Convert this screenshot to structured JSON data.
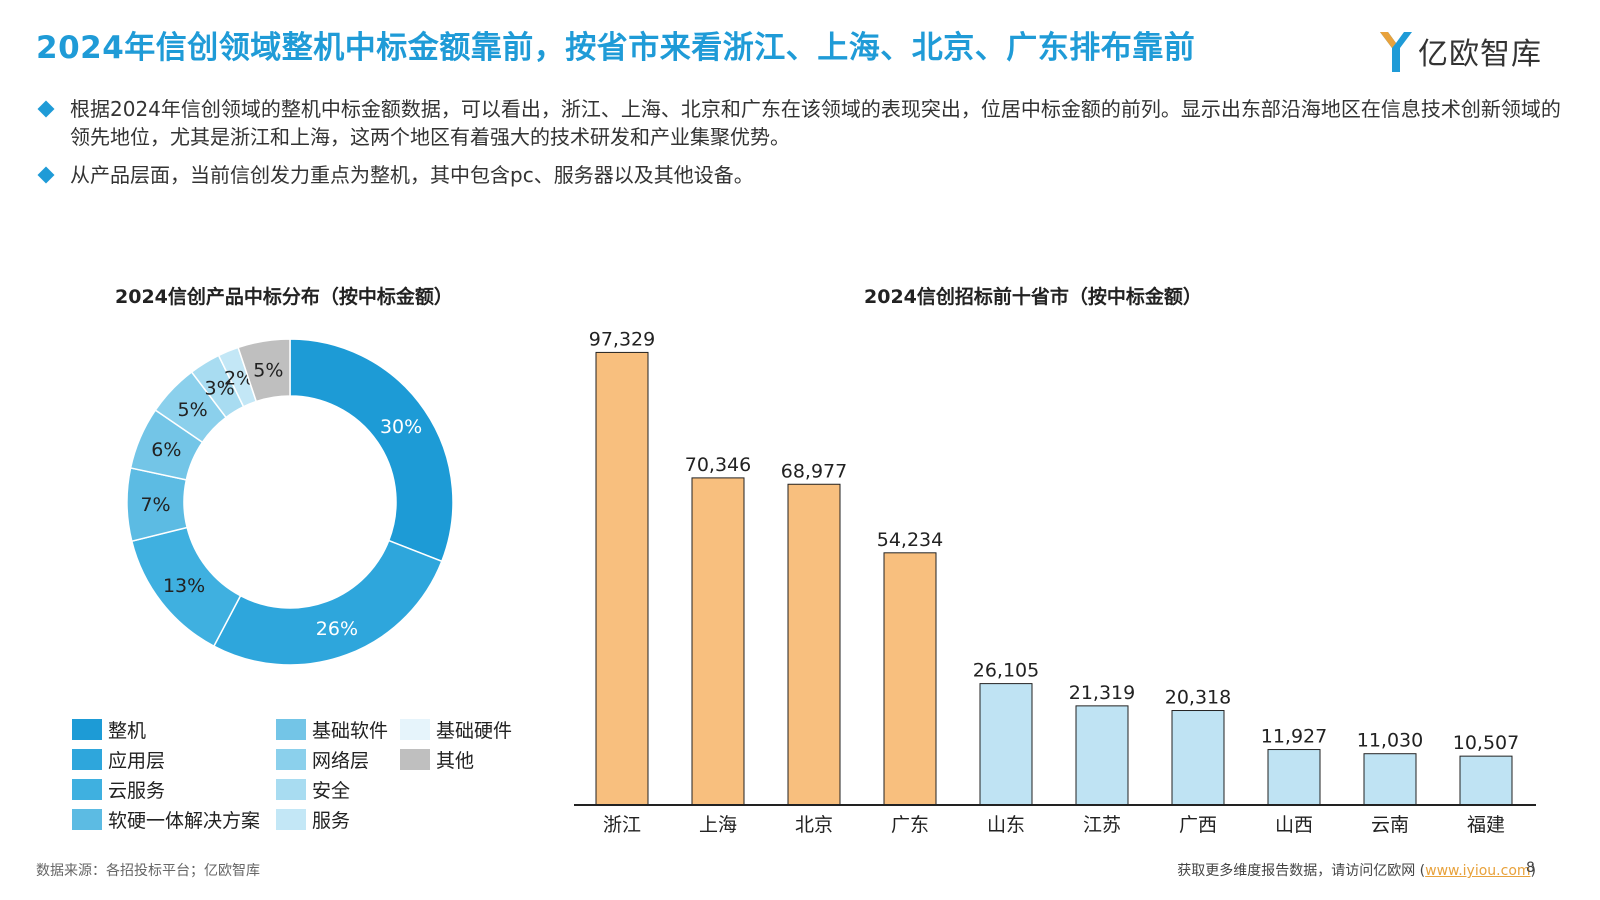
{
  "header": {
    "title": "2024年信创领域整机中标金额靠前，按省市来看浙江、上海、北京、广东排布靠前",
    "logo_text": "亿欧智库"
  },
  "bullets": [
    "根据2024年信创领域的整机中标金额数据，可以看出，浙江、上海、北京和广东在该领域的表现突出，位居中标金额的前列。显示出东部沿海地区在信息技术创新领域的领先地位，尤其是浙江和上海，这两个地区有着强大的技术研发和产业集聚优势。",
    "从产品层面，当前信创发力重点为整机，其中包含pc、服务器以及其他设备。"
  ],
  "chart_data": [
    {
      "type": "pie",
      "title": "2024信创产品中标分布（按中标金额）",
      "donut": true,
      "categories": [
        "整机",
        "应用层",
        "云服务",
        "软硬一体解决方案",
        "基础软件",
        "网络层",
        "安全",
        "服务",
        "基础硬件",
        "其他"
      ],
      "values": [
        30,
        26,
        13,
        7,
        6,
        5,
        3,
        2,
        0,
        5
      ],
      "labels": [
        "30%",
        "26%",
        "13%",
        "7%",
        "6%",
        "5%",
        "3%",
        "2%",
        "",
        "5%"
      ],
      "colors": [
        "#1d9bd6",
        "#2ea6dc",
        "#3fb0e0",
        "#5cbbe3",
        "#73c5e7",
        "#8bd0ec",
        "#a8dcf1",
        "#c3e7f6",
        "#e6f4fb",
        "#bfbfbf"
      ],
      "legend_position": "bottom"
    },
    {
      "type": "bar",
      "title": "2024信创招标前十省市（按中标金额）",
      "categories": [
        "浙江",
        "上海",
        "北京",
        "广东",
        "山东",
        "江苏",
        "广西",
        "山西",
        "云南",
        "福建"
      ],
      "values": [
        97329,
        70346,
        68977,
        54234,
        26105,
        21319,
        20318,
        11927,
        11030,
        10507
      ],
      "value_labels": [
        "97,329",
        "70,346",
        "68,977",
        "54,234",
        "26,105",
        "21,319",
        "20,318",
        "11,927",
        "11,030",
        "10,507"
      ],
      "ylim": [
        0,
        100000
      ],
      "colors": {
        "top4": "#f8bf7e",
        "rest": "#bfe3f3",
        "stroke": "#222222"
      },
      "grid": false
    }
  ],
  "footer": {
    "source": "数据来源：各招投标平台；亿欧智库",
    "cta_prefix": "获取更多维度报告数据，请访问亿欧网 (",
    "cta_link": "www.iyiou.com",
    "cta_suffix": ")",
    "page_number": "8"
  }
}
